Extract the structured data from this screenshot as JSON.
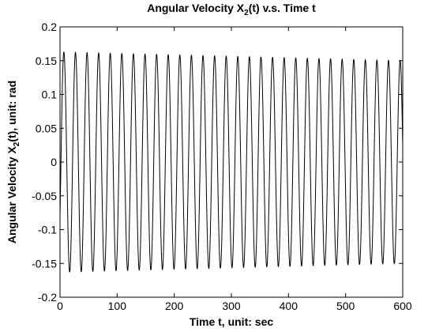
{
  "chart_data": {
    "type": "line",
    "title": {
      "prefix": "Angular Velocity X",
      "subscript": "2",
      "suffix": "(t)  v.s.  Time t"
    },
    "xlabel": "Time t, unit: sec",
    "ylabel": {
      "prefix": "Angular Velocity X",
      "subscript": "2",
      "suffix": "(t), unit: rad"
    },
    "xlim": [
      0,
      600
    ],
    "ylim": [
      -0.2,
      0.2
    ],
    "xticks": [
      "0",
      "100",
      "200",
      "300",
      "400",
      "500",
      "600"
    ],
    "yticks": [
      "-0.2",
      "-0.15",
      "-0.1",
      "-0.05",
      "0",
      "0.05",
      "0.1",
      "0.15",
      "0.2"
    ],
    "grid": false,
    "line_color": "#000000",
    "series": [
      {
        "x": [
          0,
          600
        ],
        "waveform": "damped_oscillation",
        "period": 20.3,
        "peak_x": 13,
        "amplitude_start": 0.163,
        "amplitude_end": 0.15,
        "value_at_x0": -0.08
      }
    ]
  }
}
